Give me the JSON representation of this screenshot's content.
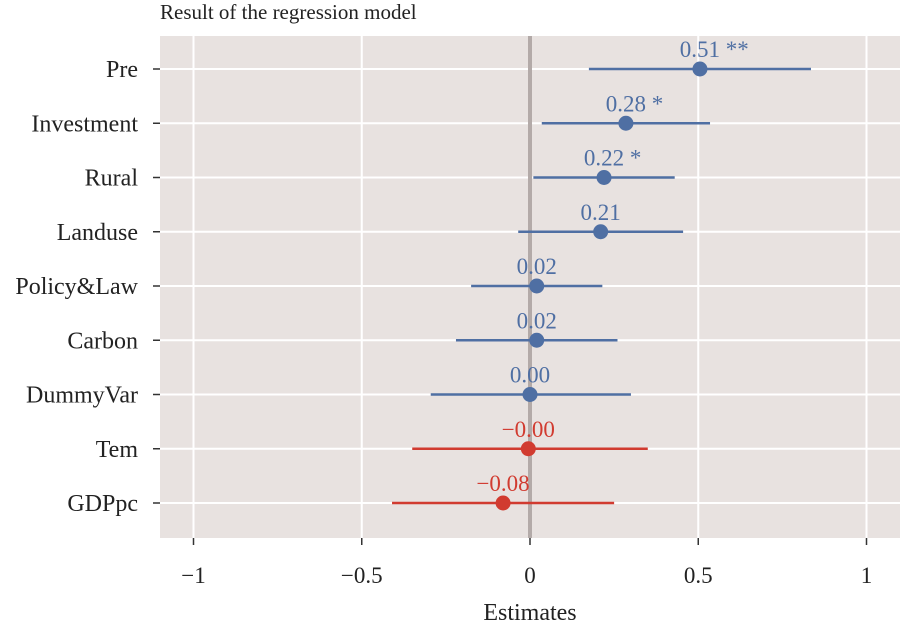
{
  "chart_data": {
    "type": "scatter",
    "title": "Result of the regression model",
    "xlabel": "Estimates",
    "ylabel": "",
    "xlim": [
      -1.1,
      1.1
    ],
    "xticks": [
      -1,
      -0.5,
      0,
      0.5,
      1
    ],
    "xtick_labels": [
      "−1",
      "−0.5",
      "0",
      "0.5",
      "1"
    ],
    "grid": true,
    "categories": [
      "Pre",
      "Investment",
      "Rural",
      "Landuse",
      "Policy&Law",
      "Carbon",
      "DummyVar",
      "Tem",
      "GDPpc"
    ],
    "estimates": [
      0.505,
      0.285,
      0.22,
      0.21,
      0.02,
      0.02,
      0.0,
      -0.005,
      -0.08
    ],
    "ci_low": [
      0.175,
      0.035,
      0.01,
      -0.035,
      -0.175,
      -0.22,
      -0.295,
      -0.35,
      -0.41
    ],
    "ci_high": [
      0.835,
      0.535,
      0.43,
      0.455,
      0.215,
      0.26,
      0.3,
      0.35,
      0.25
    ],
    "value_labels": [
      "0.51 **",
      "0.28 *",
      "0.22 *",
      "0.21",
      "0.02",
      "0.02",
      "0.00",
      "−0.00",
      "−0.08"
    ],
    "colors": {
      "positive": "#4f6fa3",
      "negative": "#d13b30",
      "panel": "#e8e2e0",
      "grid": "#ffffff",
      "zero_line": "#b3aaa8"
    }
  }
}
